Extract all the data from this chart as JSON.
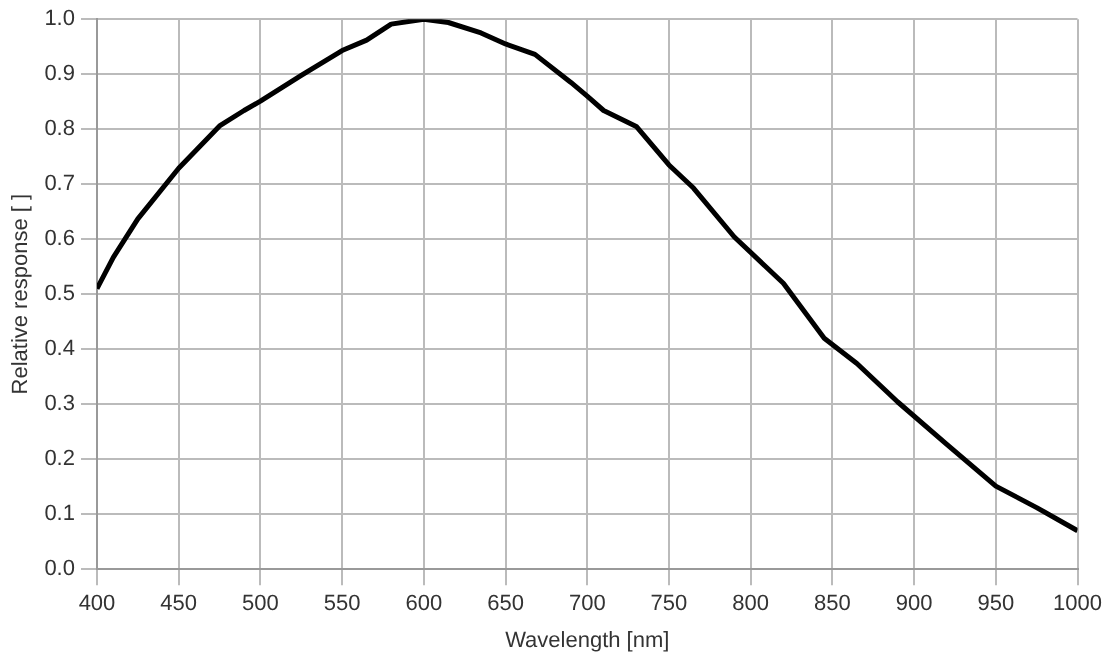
{
  "chart_data": {
    "type": "line",
    "xlabel": "Wavelength [nm]",
    "ylabel": "Relative response [ ]",
    "x": [
      400,
      410,
      425,
      450,
      475,
      490,
      500,
      525,
      550,
      565,
      580,
      600,
      615,
      635,
      650,
      668,
      690,
      700,
      710,
      730,
      750,
      765,
      790,
      820,
      845,
      865,
      890,
      920,
      950,
      975,
      1000
    ],
    "series": [
      {
        "color": "#000000",
        "values": [
          0.51,
          0.567,
          0.637,
          0.729,
          0.806,
          0.834,
          0.851,
          0.898,
          0.943,
          0.962,
          0.991,
          1.0,
          0.994,
          0.975,
          0.955,
          0.936,
          0.885,
          0.86,
          0.834,
          0.805,
          0.735,
          0.693,
          0.604,
          0.52,
          0.42,
          0.374,
          0.304,
          0.227,
          0.151,
          0.112,
          0.07
        ]
      }
    ],
    "xlim": [
      400,
      1000
    ],
    "xticks": [
      400,
      450,
      500,
      550,
      600,
      650,
      700,
      750,
      800,
      850,
      900,
      950,
      1000
    ],
    "ylim": [
      0,
      1
    ],
    "yticks": [
      {
        "value": 0,
        "label": "0.0"
      },
      {
        "value": 0.1,
        "label": "0.1"
      },
      {
        "value": 0.2,
        "label": "0.2"
      },
      {
        "value": 0.3,
        "label": "0.3"
      },
      {
        "value": 0.4,
        "label": "0.4"
      },
      {
        "value": 0.5,
        "label": "0.5"
      },
      {
        "value": 0.6,
        "label": "0.6"
      },
      {
        "value": 0.7,
        "label": "0.7"
      },
      {
        "value": 0.8,
        "label": "0.8"
      },
      {
        "value": 0.9,
        "label": "0.9"
      },
      {
        "value": 1,
        "label": "1.0"
      }
    ],
    "grid": true,
    "marker": "none",
    "line_style": "solid",
    "legend": false
  }
}
